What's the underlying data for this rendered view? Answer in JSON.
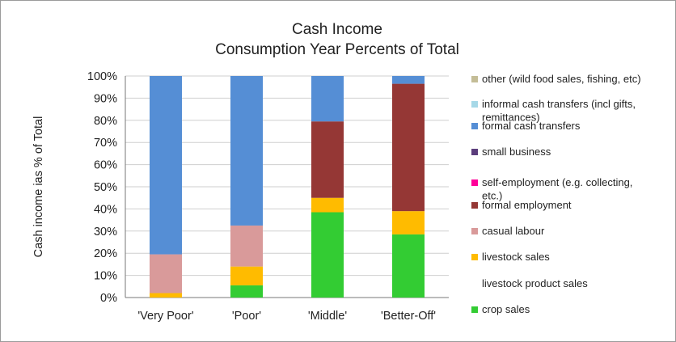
{
  "chart_data": {
    "type": "bar",
    "stacked": true,
    "title": "Cash Income",
    "subtitle": "Consumption Year Percents of Total",
    "xlabel": "",
    "ylabel": "Cash income ias % of Total",
    "ylim": [
      0,
      100
    ],
    "yticks": [
      "0%",
      "10%",
      "20%",
      "30%",
      "40%",
      "50%",
      "60%",
      "70%",
      "80%",
      "90%",
      "100%"
    ],
    "categories": [
      "'Very Poor'",
      "'Poor'",
      "'Middle'",
      "'Better-Off'"
    ],
    "series": [
      {
        "name": "crop sales",
        "color": "#33cc33",
        "values": [
          0,
          5.5,
          38.5,
          28.5
        ]
      },
      {
        "name": "livestock product sales",
        "color": "#ffffff",
        "values": [
          0,
          0,
          0,
          0
        ]
      },
      {
        "name": "livestock sales",
        "color": "#ffbb00",
        "values": [
          2,
          8.5,
          6.5,
          10.5
        ]
      },
      {
        "name": "casual labour",
        "color": "#d99a9a",
        "values": [
          17.5,
          18.5,
          0,
          0
        ]
      },
      {
        "name": "formal employment",
        "color": "#953735",
        "values": [
          0,
          0,
          34.5,
          57.5
        ]
      },
      {
        "name": "self-employment (e.g. collecting, etc.)",
        "color": "#ff0099",
        "values": [
          0,
          0,
          0,
          0
        ]
      },
      {
        "name": "small business",
        "color": "#5b3d7c",
        "values": [
          0,
          0,
          0,
          0
        ]
      },
      {
        "name": "formal cash transfers",
        "color": "#558ed5",
        "values": [
          80.5,
          67.5,
          20.5,
          3.5
        ]
      },
      {
        "name": "informal cash transfers (incl gifts, remittances)",
        "color": "#a6d8e7",
        "values": [
          0,
          0,
          0,
          0
        ]
      },
      {
        "name": "other (wild food sales, fishing, etc)",
        "color": "#c4bd97",
        "values": [
          0,
          0,
          0,
          0
        ]
      }
    ],
    "legend": {
      "placement": "right",
      "entries": [
        {
          "lines": [
            "other (wild food sales, fishing, etc)"
          ],
          "color": "#c4bd97"
        },
        {
          "lines": [
            "informal cash transfers (incl gifts,",
            "remittances)"
          ],
          "color": "#a6d8e7"
        },
        {
          "lines": [
            "formal cash transfers"
          ],
          "color": "#558ed5"
        },
        {
          "lines": [
            "small business"
          ],
          "color": "#5b3d7c"
        },
        {
          "lines": [
            "self-employment (e.g. collecting,",
            "etc.)"
          ],
          "color": "#ff0099"
        },
        {
          "lines": [
            "formal employment"
          ],
          "color": "#953735"
        },
        {
          "lines": [
            "casual labour"
          ],
          "color": "#d99a9a"
        },
        {
          "lines": [
            "livestock sales"
          ],
          "color": "#ffbb00"
        },
        {
          "lines": [
            "livestock product sales"
          ],
          "color": "#ffffff"
        },
        {
          "lines": [
            "crop sales"
          ],
          "color": "#33cc33"
        }
      ]
    },
    "grid": true
  }
}
